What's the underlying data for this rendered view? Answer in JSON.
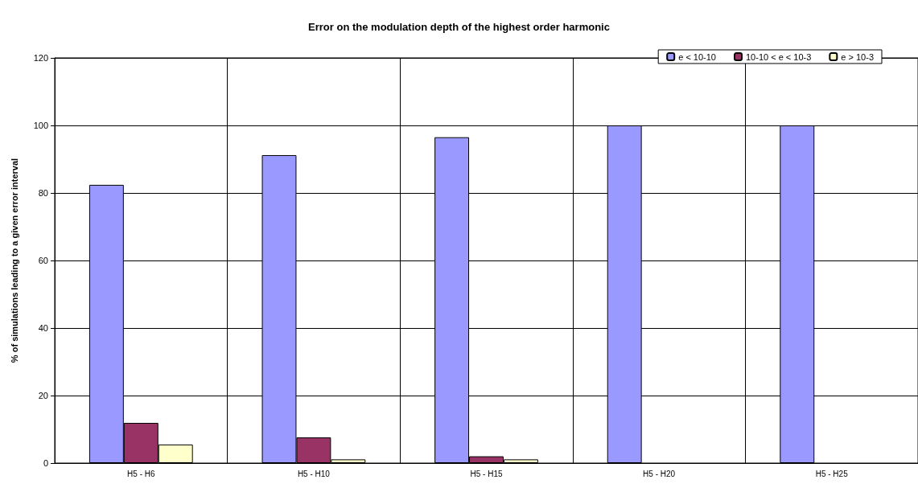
{
  "chart_data": {
    "type": "bar",
    "title": "Error on the modulation depth of the highest order harmonic",
    "ylabel": "% of simulations leading to a given error interval",
    "categories": [
      "H5 - H6",
      "H5 - H10",
      "H5 - H15",
      "H5 - H20",
      "H5 - H25"
    ],
    "series": [
      {
        "name": "e < 10-10",
        "color": "#9999ff",
        "values": [
          82.4,
          91.2,
          96.5,
          100,
          100
        ]
      },
      {
        "name": "10-10 < e < 10-3",
        "color": "#993366",
        "values": [
          11.9,
          7.6,
          2,
          null,
          null
        ]
      },
      {
        "name": "e > 10-3",
        "color": "#ffffcc",
        "values": [
          5.5,
          1.1,
          1.1,
          null,
          null
        ]
      }
    ],
    "ylim": [
      0,
      120
    ],
    "yticks": [
      0,
      20,
      40,
      60,
      80,
      100,
      120
    ],
    "grid": true,
    "legend": "top right"
  }
}
